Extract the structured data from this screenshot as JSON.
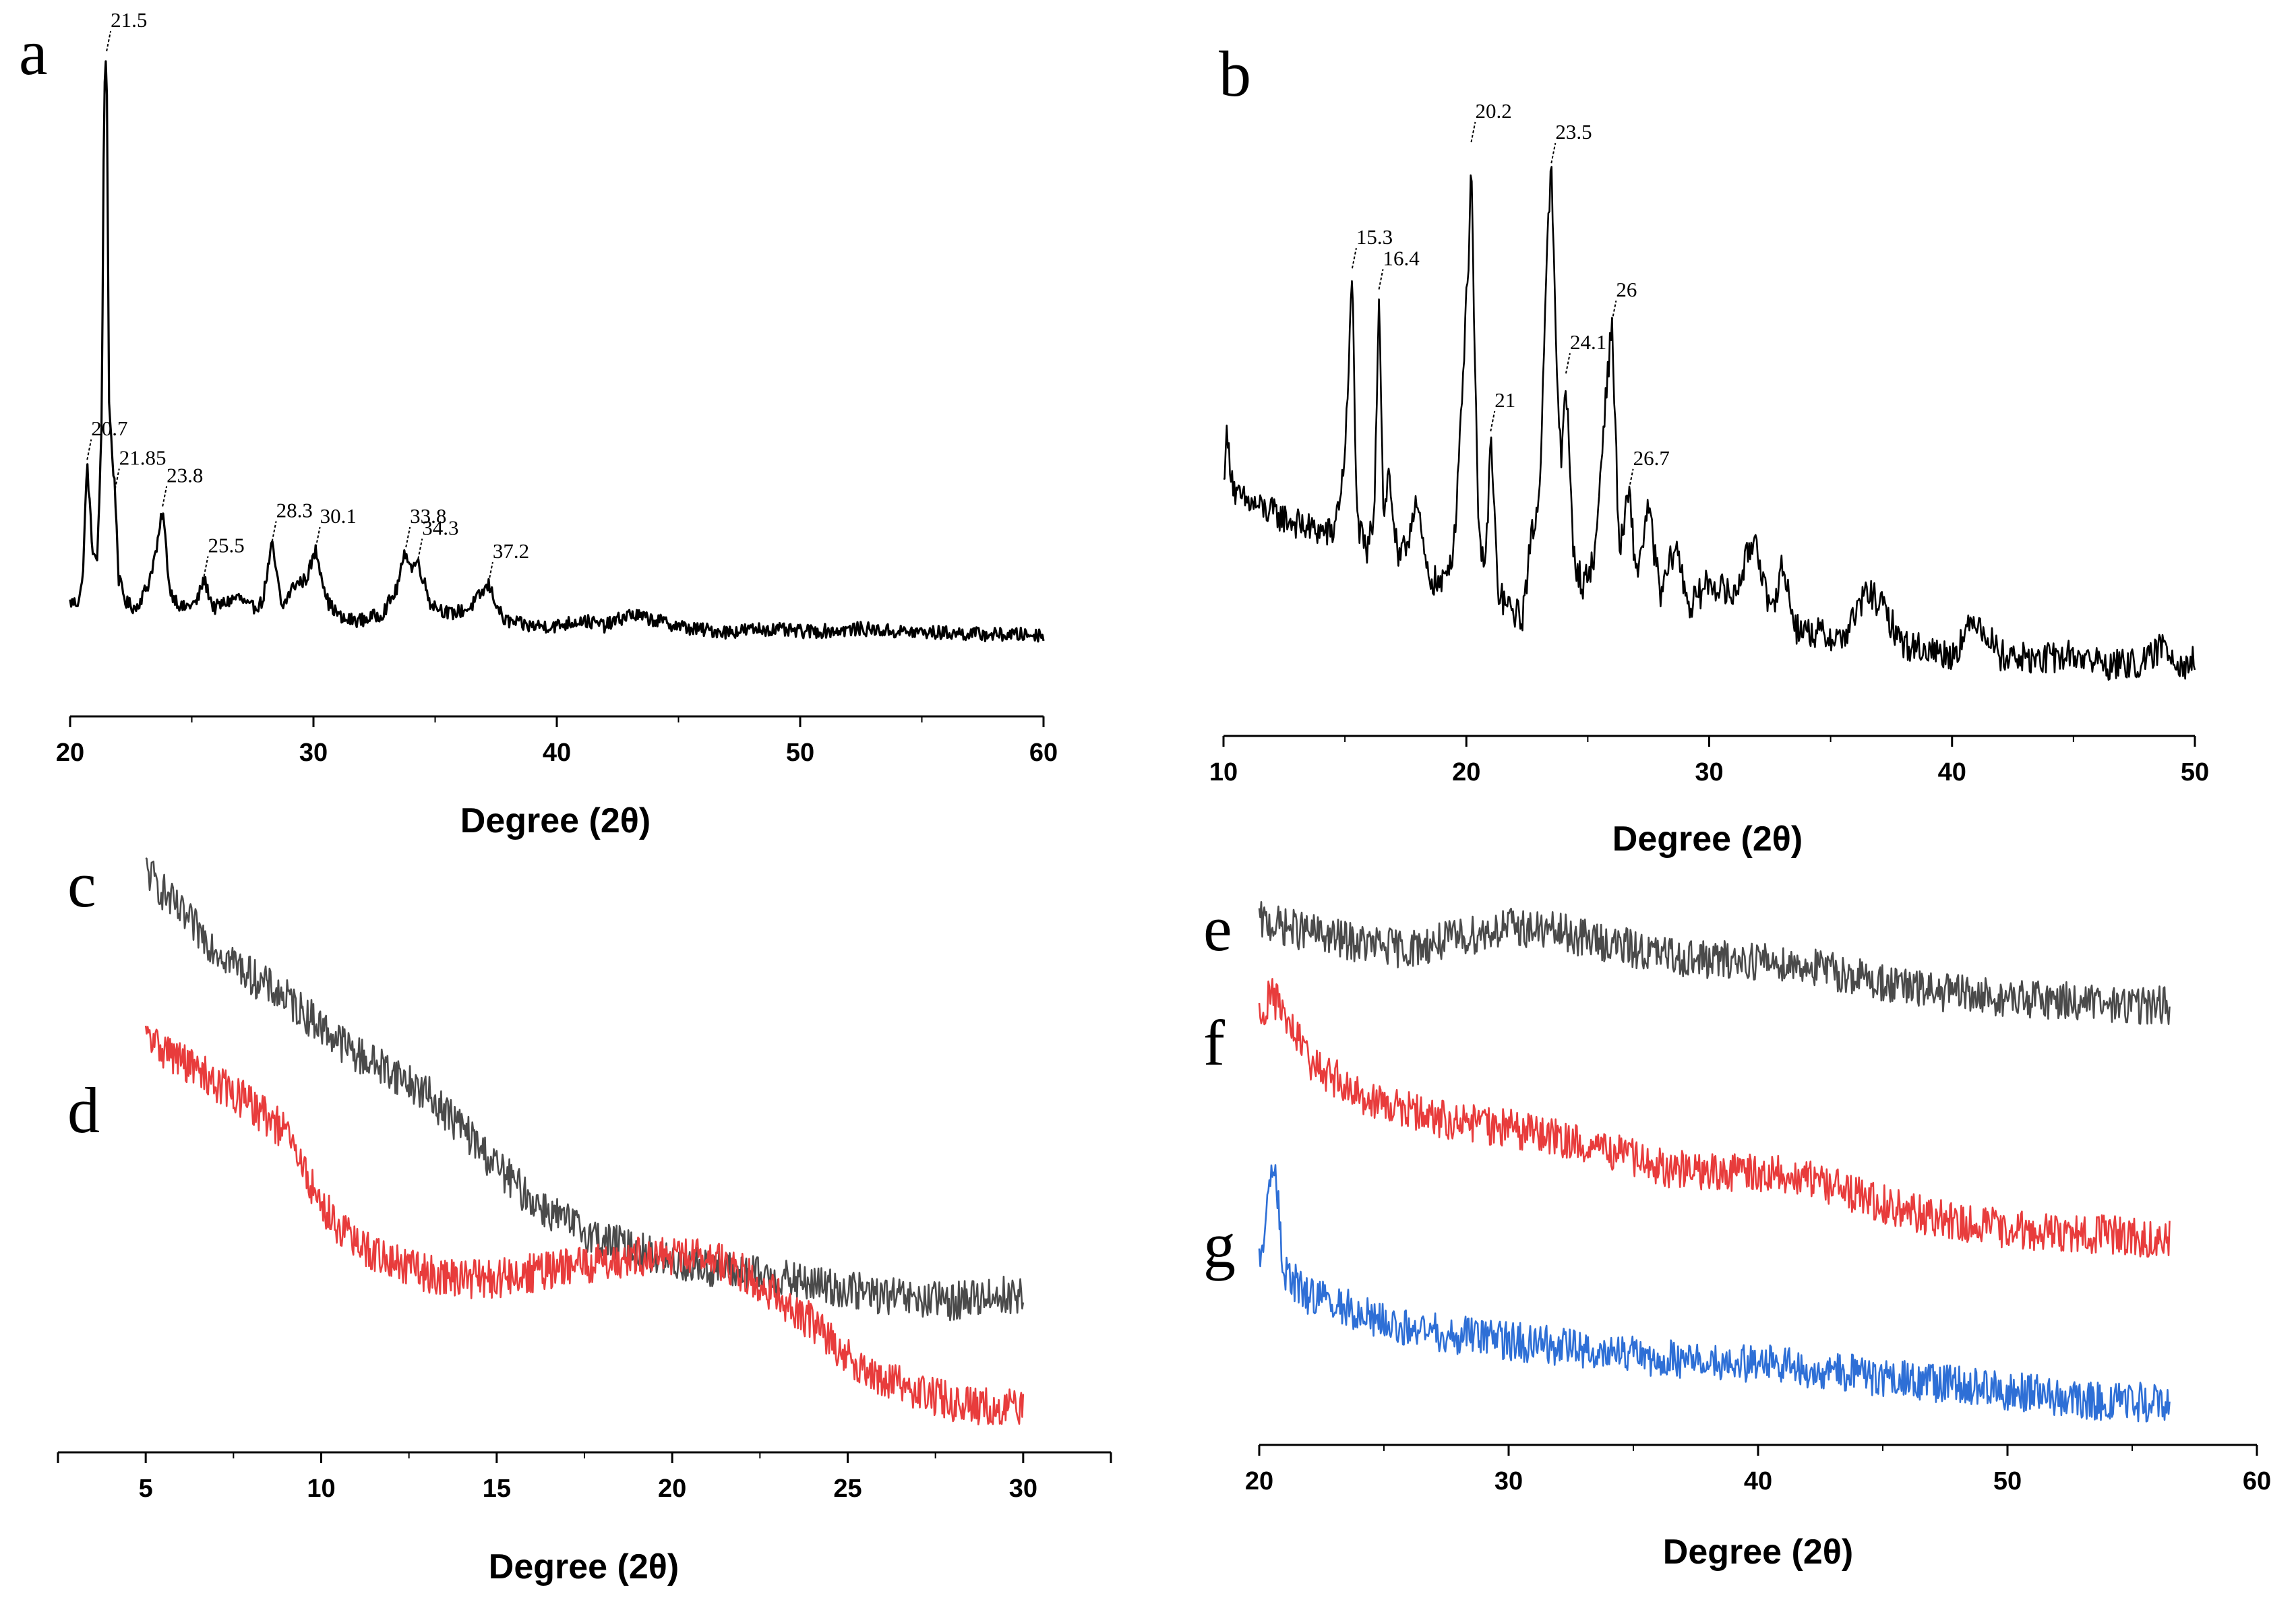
{
  "panel_letters": {
    "a": "a",
    "b": "b",
    "c": "c",
    "d": "d",
    "e": "e",
    "f": "f",
    "g": "g"
  },
  "chart_data": [
    {
      "id": "a",
      "type": "line",
      "xlabel": "Degree (2θ)",
      "xlim": [
        20,
        60
      ],
      "xticks": [
        20,
        30,
        40,
        50,
        60
      ],
      "yaxis_shown": false,
      "series": [
        {
          "color": "#000000",
          "x": [
            20,
            20.3,
            20.5,
            20.7,
            20.9,
            21.1,
            21.3,
            21.4,
            21.5,
            21.6,
            21.75,
            21.85,
            22.0,
            22.3,
            22.7,
            23.2,
            23.6,
            23.8,
            24.1,
            24.6,
            25.2,
            25.5,
            25.9,
            26.4,
            26.9,
            27.4,
            27.9,
            28.3,
            28.7,
            29.2,
            29.7,
            30.1,
            30.6,
            31.2,
            32.0,
            32.8,
            33.4,
            33.8,
            34.0,
            34.3,
            34.8,
            35.6,
            36.4,
            37.2,
            37.8,
            38.8,
            40.0,
            41.0,
            42.0,
            43.0,
            44.0,
            45.5,
            47.0,
            48.5,
            50.0,
            51.5,
            52.5,
            54.0,
            56.0,
            58.0,
            60.0
          ],
          "y": [
            0.06,
            0.06,
            0.09,
            0.3,
            0.16,
            0.12,
            0.36,
            0.95,
            1.0,
            0.4,
            0.3,
            0.25,
            0.1,
            0.06,
            0.05,
            0.09,
            0.16,
            0.22,
            0.08,
            0.05,
            0.06,
            0.1,
            0.05,
            0.06,
            0.07,
            0.05,
            0.06,
            0.16,
            0.05,
            0.09,
            0.1,
            0.15,
            0.06,
            0.03,
            0.03,
            0.04,
            0.08,
            0.15,
            0.12,
            0.13,
            0.06,
            0.04,
            0.05,
            0.09,
            0.03,
            0.02,
            0.02,
            0.03,
            0.02,
            0.04,
            0.03,
            0.015,
            0.01,
            0.015,
            0.01,
            0.012,
            0.015,
            0.01,
            0.008,
            0.005,
            0.005
          ]
        }
      ],
      "annotations": [
        {
          "x": 20.7,
          "label": "20.7"
        },
        {
          "x": 21.5,
          "label": "21.5"
        },
        {
          "x": 21.85,
          "label": "21.85"
        },
        {
          "x": 23.8,
          "label": "23.8"
        },
        {
          "x": 25.5,
          "label": "25.5"
        },
        {
          "x": 28.3,
          "label": "28.3"
        },
        {
          "x": 30.1,
          "label": "30.1"
        },
        {
          "x": 33.8,
          "label": "33.8"
        },
        {
          "x": 34.3,
          "label": "34.3"
        },
        {
          "x": 37.2,
          "label": "37.2"
        }
      ]
    },
    {
      "id": "b",
      "type": "line",
      "xlabel": "Degree (2θ)",
      "xlim": [
        10,
        50
      ],
      "xticks": [
        10,
        20,
        30,
        40,
        50
      ],
      "yaxis_shown": false,
      "series": [
        {
          "color": "#000000",
          "x": [
            10,
            10.1,
            10.5,
            11.5,
            12.5,
            13.5,
            14.5,
            14.9,
            15.1,
            15.3,
            15.5,
            15.9,
            16.2,
            16.4,
            16.6,
            16.8,
            17.2,
            17.6,
            17.9,
            18.4,
            19.0,
            19.5,
            19.9,
            20.1,
            20.2,
            20.3,
            20.5,
            20.8,
            21.0,
            21.3,
            21.7,
            22.3,
            22.7,
            23.0,
            23.3,
            23.5,
            23.7,
            23.9,
            24.1,
            24.4,
            24.8,
            25.3,
            25.7,
            26.0,
            26.3,
            26.7,
            27.0,
            27.5,
            28.0,
            28.6,
            29.2,
            30.0,
            31.0,
            31.9,
            32.5,
            33.0,
            33.6,
            34.5,
            35.5,
            36.5,
            37.0,
            38.0,
            39.0,
            40.0,
            41.0,
            42.0,
            43.5,
            45.0,
            46.5,
            48.0,
            48.7,
            49.5,
            50.0
          ],
          "y": [
            0.35,
            0.45,
            0.33,
            0.31,
            0.29,
            0.27,
            0.26,
            0.36,
            0.5,
            0.76,
            0.28,
            0.22,
            0.3,
            0.72,
            0.28,
            0.38,
            0.2,
            0.25,
            0.33,
            0.18,
            0.16,
            0.24,
            0.6,
            0.8,
            1.0,
            0.7,
            0.25,
            0.2,
            0.45,
            0.15,
            0.12,
            0.1,
            0.26,
            0.32,
            0.78,
            0.96,
            0.6,
            0.4,
            0.56,
            0.22,
            0.16,
            0.22,
            0.5,
            0.66,
            0.22,
            0.34,
            0.18,
            0.31,
            0.14,
            0.24,
            0.12,
            0.17,
            0.14,
            0.26,
            0.1,
            0.2,
            0.08,
            0.07,
            0.06,
            0.15,
            0.13,
            0.05,
            0.04,
            0.03,
            0.1,
            0.03,
            0.02,
            0.03,
            0.01,
            0.015,
            0.05,
            0.01,
            0.02
          ]
        }
      ],
      "annotations": [
        {
          "x": 15.3,
          "label": "15.3"
        },
        {
          "x": 16.4,
          "label": "16.4"
        },
        {
          "x": 20.2,
          "label": "20.2"
        },
        {
          "x": 21.0,
          "label": "21"
        },
        {
          "x": 23.5,
          "label": "23.5"
        },
        {
          "x": 24.1,
          "label": "24.1"
        },
        {
          "x": 26.0,
          "label": "26"
        },
        {
          "x": 26.7,
          "label": "26.7"
        }
      ]
    },
    {
      "id": "cd",
      "type": "line",
      "xlabel": "Degree (2θ)",
      "xlim": [
        2.5,
        32.5
      ],
      "xticks": [
        5,
        10,
        15,
        20,
        25,
        30
      ],
      "yaxis_shown": false,
      "series": [
        {
          "color": "#4a4a4a",
          "x": [
            5,
            6,
            7,
            8,
            9,
            10,
            11,
            12,
            13,
            14,
            15,
            16,
            17,
            18,
            19,
            20,
            21,
            22,
            23,
            24,
            25,
            26,
            27,
            28,
            29,
            30
          ],
          "y": [
            1.0,
            0.92,
            0.86,
            0.81,
            0.77,
            0.72,
            0.67,
            0.64,
            0.6,
            0.54,
            0.47,
            0.41,
            0.37,
            0.34,
            0.32,
            0.3,
            0.29,
            0.28,
            0.27,
            0.26,
            0.25,
            0.24,
            0.23,
            0.23,
            0.24,
            0.24
          ]
        },
        {
          "color": "#e83c3c",
          "x": [
            5,
            6,
            7,
            8,
            9,
            10,
            11,
            12,
            13,
            14,
            15,
            16,
            17,
            18,
            19,
            20,
            21,
            22,
            23,
            24,
            25,
            26,
            27,
            28,
            29,
            30
          ],
          "y": [
            0.7,
            0.66,
            0.62,
            0.58,
            0.53,
            0.4,
            0.33,
            0.3,
            0.28,
            0.27,
            0.27,
            0.28,
            0.29,
            0.3,
            0.31,
            0.31,
            0.31,
            0.28,
            0.24,
            0.19,
            0.13,
            0.09,
            0.07,
            0.05,
            0.04,
            0.04
          ]
        }
      ]
    },
    {
      "id": "efg",
      "type": "line",
      "xlabel": "Degree (2θ)",
      "xlim": [
        20,
        60
      ],
      "xticks": [
        20,
        30,
        40,
        50,
        60
      ],
      "yaxis_shown": false,
      "series": [
        {
          "color": "#4a4a4a",
          "x": [
            20,
            22,
            24,
            26,
            28,
            30,
            32,
            34,
            36,
            38,
            40,
            42,
            44,
            46,
            48,
            50,
            52,
            54,
            56.5
          ],
          "y": [
            0.91,
            0.89,
            0.87,
            0.86,
            0.88,
            0.9,
            0.89,
            0.87,
            0.85,
            0.84,
            0.84,
            0.83,
            0.81,
            0.79,
            0.78,
            0.77,
            0.77,
            0.76,
            0.76
          ]
        },
        {
          "color": "#e83c3c",
          "x": [
            20,
            20.5,
            22,
            24,
            26,
            28,
            30,
            32,
            34,
            36,
            38,
            40,
            42,
            44,
            46,
            48,
            50,
            52,
            54,
            56.5
          ],
          "y": [
            0.74,
            0.78,
            0.66,
            0.6,
            0.57,
            0.55,
            0.54,
            0.52,
            0.5,
            0.47,
            0.46,
            0.46,
            0.45,
            0.42,
            0.39,
            0.37,
            0.36,
            0.35,
            0.35,
            0.34
          ]
        },
        {
          "color": "#2e6fd6",
          "x": [
            20,
            20.6,
            21,
            22,
            24,
            26,
            28,
            30,
            32,
            34,
            36,
            38,
            40,
            42,
            44,
            46,
            48,
            50,
            52,
            54,
            56.5
          ],
          "y": [
            0.3,
            0.48,
            0.28,
            0.24,
            0.21,
            0.18,
            0.17,
            0.16,
            0.15,
            0.14,
            0.13,
            0.12,
            0.12,
            0.11,
            0.1,
            0.09,
            0.08,
            0.07,
            0.06,
            0.05,
            0.05
          ]
        }
      ]
    }
  ]
}
